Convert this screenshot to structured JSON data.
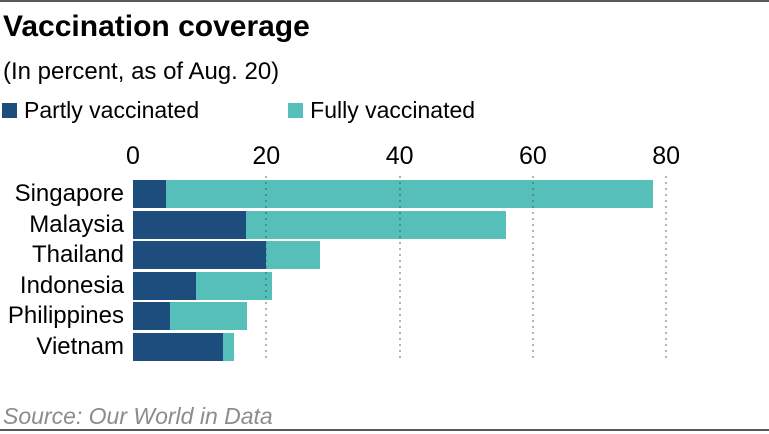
{
  "header": {
    "title": "Vaccination coverage",
    "subtitle": "(In percent, as of Aug. 20)"
  },
  "legend": [
    {
      "label": "Partly vaccinated",
      "color": "#1d4d7c"
    },
    {
      "label": "Fully vaccinated",
      "color": "#57bfb9"
    }
  ],
  "chart_data": {
    "type": "bar",
    "orientation": "horizontal",
    "stacked": true,
    "title": "Vaccination coverage",
    "subtitle": "(In percent, as of Aug. 20)",
    "xlabel": "",
    "ylabel": "",
    "xlim": [
      0,
      80
    ],
    "x_ticks": [
      0,
      20,
      40,
      60,
      80
    ],
    "grid": "dotted-vertical",
    "legend_position": "top",
    "categories": [
      "Singapore",
      "Malaysia",
      "Thailand",
      "Indonesia",
      "Philippines",
      "Vietnam"
    ],
    "series": [
      {
        "name": "Partly vaccinated",
        "color": "#1d4d7c",
        "values": [
          5,
          17,
          20,
          9.5,
          5.5,
          13.5
        ]
      },
      {
        "name": "Fully vaccinated",
        "color": "#57bfb9",
        "values": [
          73,
          39,
          8,
          11.3,
          11.6,
          1.7
        ]
      }
    ],
    "totals": [
      78,
      56,
      28,
      20.8,
      17.1,
      15.2
    ]
  },
  "source": "Source: Our World in Data"
}
